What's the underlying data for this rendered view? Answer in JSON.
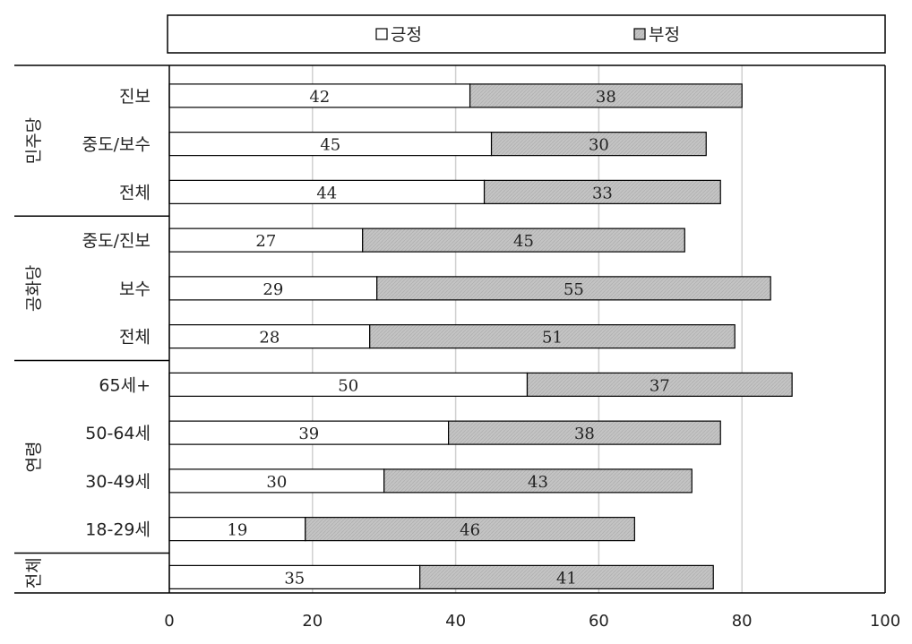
{
  "chart_data": {
    "type": "bar",
    "orientation": "horizontal",
    "stacked": true,
    "xlim": [
      0,
      100
    ],
    "x_ticks": [
      "0",
      "20",
      "40",
      "60",
      "80",
      "100"
    ],
    "legend": {
      "placement": "top",
      "entries": [
        {
          "label": "긍정",
          "color": "#ffffff"
        },
        {
          "label": "부정",
          "color": "#c0c0c0"
        }
      ]
    },
    "groups": [
      {
        "label": "민주당",
        "rows": [
          {
            "label": "진보",
            "positive": 42,
            "negative": 38
          },
          {
            "label": "중도/보수",
            "positive": 45,
            "negative": 30
          },
          {
            "label": "전체",
            "positive": 44,
            "negative": 33
          }
        ]
      },
      {
        "label": "공화당",
        "rows": [
          {
            "label": "중도/진보",
            "positive": 27,
            "negative": 45
          },
          {
            "label": "보수",
            "positive": 29,
            "negative": 55
          },
          {
            "label": "전체",
            "positive": 28,
            "negative": 51
          }
        ]
      },
      {
        "label": "연령",
        "rows": [
          {
            "label": "65세+",
            "positive": 50,
            "negative": 37
          },
          {
            "label": "50-64세",
            "positive": 39,
            "negative": 38
          },
          {
            "label": "30-49세",
            "positive": 30,
            "negative": 43
          },
          {
            "label": "18-29세",
            "positive": 19,
            "negative": 46
          }
        ]
      },
      {
        "label": "전체",
        "rows": [
          {
            "label": "",
            "positive": 35,
            "negative": 41
          }
        ]
      }
    ],
    "grid": true
  }
}
